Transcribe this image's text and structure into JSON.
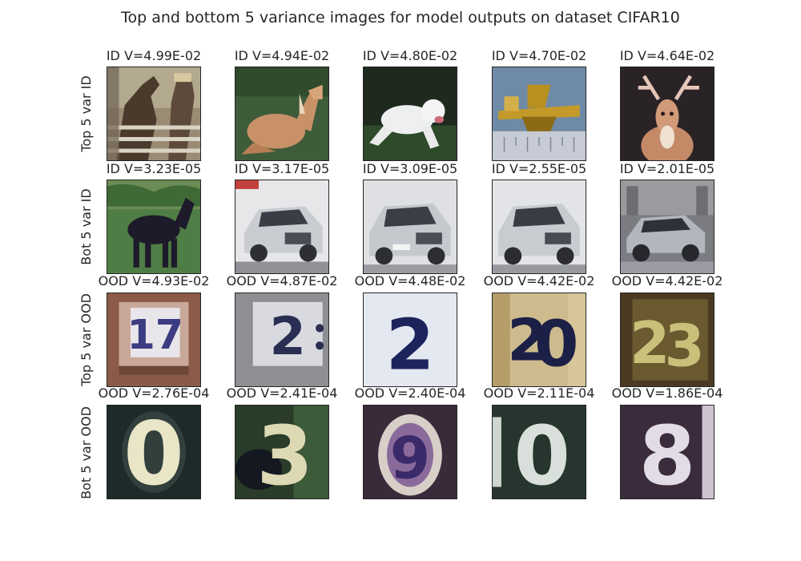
{
  "figure": {
    "title": "Top and bottom 5 variance images for model outputs on dataset CIFAR10"
  },
  "rows": [
    {
      "label": "Top 5 var ID",
      "cells": [
        {
          "title": "ID V=4.99E-02",
          "content": "horse-with-rider-at-fence"
        },
        {
          "title": "ID V=4.94E-02",
          "content": "horse-lying-on-grass"
        },
        {
          "title": "ID V=4.80E-02",
          "content": "white-dog-running"
        },
        {
          "title": "ID V=4.70E-02",
          "content": "gold-airplane-model"
        },
        {
          "title": "ID V=4.64E-02",
          "content": "deer-with-antlers"
        }
      ]
    },
    {
      "label": "Bot 5 var ID",
      "cells": [
        {
          "title": "ID V=3.23E-05",
          "content": "dark-horse-on-grass"
        },
        {
          "title": "ID V=3.17E-05",
          "content": "silver-car"
        },
        {
          "title": "ID V=3.09E-05",
          "content": "silver-car"
        },
        {
          "title": "ID V=2.55E-05",
          "content": "silver-car"
        },
        {
          "title": "ID V=2.01E-05",
          "content": "silver-car-on-road"
        }
      ]
    },
    {
      "label": "Top 5 var OOD",
      "cells": [
        {
          "title": "OOD V=4.93E-02",
          "content": "house-number-digits"
        },
        {
          "title": "OOD V=4.87E-02",
          "content": "house-number-digit"
        },
        {
          "title": "OOD V=4.48E-02",
          "content": "house-number-digit"
        },
        {
          "title": "OOD V=4.42E-02",
          "content": "house-number-digits"
        },
        {
          "title": "OOD V=4.42E-02",
          "content": "house-number-digits"
        }
      ]
    },
    {
      "label": "Bot 5 var OOD",
      "cells": [
        {
          "title": "OOD V=2.76E-04",
          "content": "house-number-digit"
        },
        {
          "title": "OOD V=2.41E-04",
          "content": "house-number-digit"
        },
        {
          "title": "OOD V=2.40E-04",
          "content": "house-number-digit"
        },
        {
          "title": "OOD V=2.11E-04",
          "content": "house-number-digits"
        },
        {
          "title": "OOD V=1.86E-04",
          "content": "house-number-digit"
        }
      ]
    }
  ]
}
